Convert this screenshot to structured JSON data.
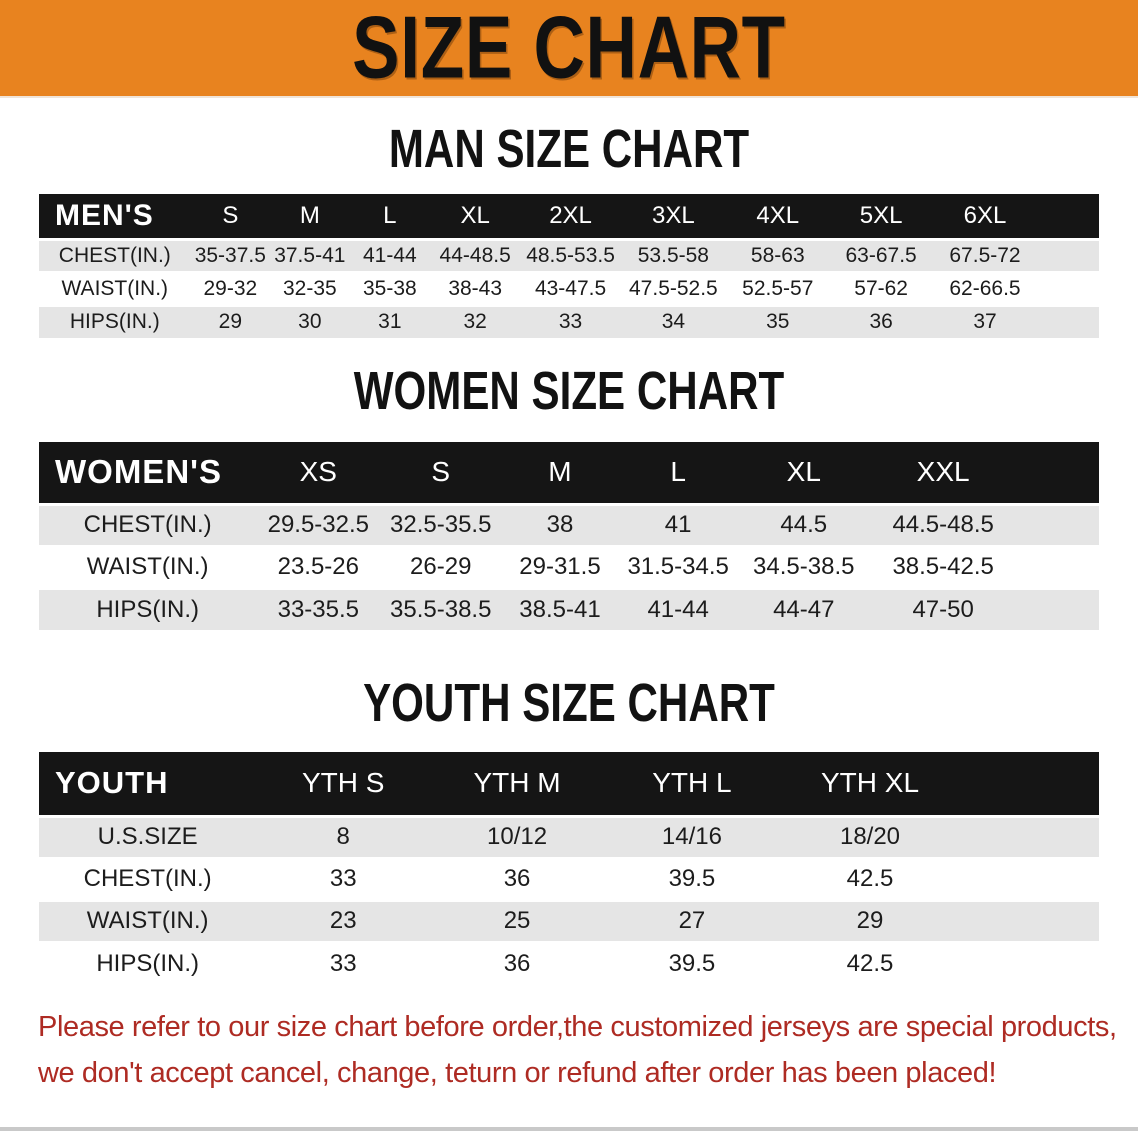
{
  "banner": {
    "title": "SIZE CHART"
  },
  "sections": [
    {
      "title": "MAN SIZE CHART",
      "header_label": "MEN'S",
      "columns": [
        "S",
        "M",
        "L",
        "XL",
        "2XL",
        "3XL",
        "4XL",
        "5XL",
        "6XL"
      ],
      "rows": [
        {
          "label": "CHEST(IN.)",
          "values": [
            "35-37.5",
            "37.5-41",
            "41-44",
            "44-48.5",
            "48.5-53.5",
            "53.5-58",
            "58-63",
            "63-67.5",
            "67.5-72"
          ]
        },
        {
          "label": "WAIST(IN.)",
          "values": [
            "29-32",
            "32-35",
            "35-38",
            "38-43",
            "43-47.5",
            "47.5-52.5",
            "52.5-57",
            "57-62",
            "62-66.5"
          ]
        },
        {
          "label": "HIPS(IN.)",
          "values": [
            "29",
            "30",
            "31",
            "32",
            "33",
            "34",
            "35",
            "36",
            "37"
          ]
        }
      ]
    },
    {
      "title": "WOMEN SIZE CHART",
      "header_label": "WOMEN'S",
      "columns": [
        "XS",
        "S",
        "M",
        "L",
        "XL",
        "XXL"
      ],
      "rows": [
        {
          "label": "CHEST(IN.)",
          "values": [
            "29.5-32.5",
            "32.5-35.5",
            "38",
            "41",
            "44.5",
            "44.5-48.5"
          ]
        },
        {
          "label": "WAIST(IN.)",
          "values": [
            "23.5-26",
            "26-29",
            "29-31.5",
            "31.5-34.5",
            "34.5-38.5",
            "38.5-42.5"
          ]
        },
        {
          "label": "HIPS(IN.)",
          "values": [
            "33-35.5",
            "35.5-38.5",
            "38.5-41",
            "41-44",
            "44-47",
            "47-50"
          ]
        }
      ]
    },
    {
      "title": "YOUTH SIZE CHART",
      "header_label": "YOUTH",
      "columns": [
        "YTH S",
        "YTH M",
        "YTH L",
        "YTH XL"
      ],
      "rows": [
        {
          "label": "U.S.SIZE",
          "values": [
            "8",
            "10/12",
            "14/16",
            "18/20"
          ]
        },
        {
          "label": "CHEST(IN.)",
          "values": [
            "33",
            "36",
            "39.5",
            "42.5"
          ]
        },
        {
          "label": "WAIST(IN.)",
          "values": [
            "23",
            "25",
            "27",
            "29"
          ]
        },
        {
          "label": "HIPS(IN.)",
          "values": [
            "33",
            "36",
            "39.5",
            "42.5"
          ]
        }
      ]
    }
  ],
  "notice": {
    "line1": "Please refer to our size chart before order,the customized jerseys are special products,",
    "line2": "we don't accept cancel, change, teturn or refund after order has been placed!"
  },
  "colors": {
    "banner_orange": "#E8831F",
    "header_bar_black": "#151515",
    "row_gray": "#E5E5E5",
    "row_white": "#FFFFFF",
    "notice_red": "#AE2B23"
  }
}
